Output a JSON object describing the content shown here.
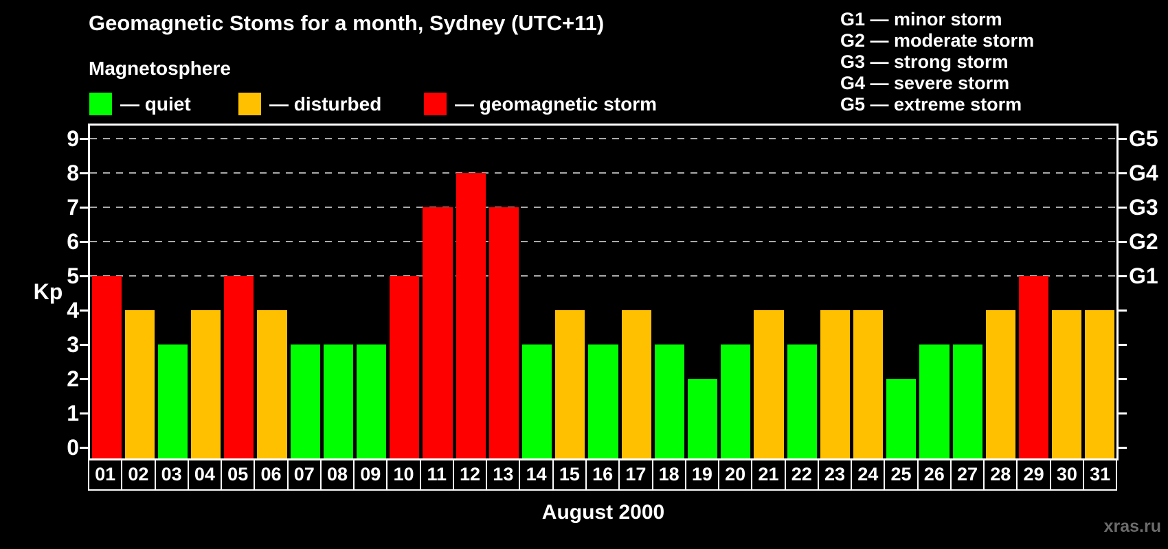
{
  "watermark": "xras.ru",
  "colors": {
    "quiet": "#00ff00",
    "disturbed": "#ffc000",
    "storm": "#ff0000",
    "axis": "#ffffff",
    "grid": "#aaaaaa",
    "background": "#000000",
    "text": "#ffffff",
    "watermark": "#6b6b6b"
  },
  "magnetosphere_legend": {
    "title": "Magnetosphere",
    "items": [
      {
        "level": "quiet",
        "label": "— quiet"
      },
      {
        "level": "disturbed",
        "label": "— disturbed"
      },
      {
        "level": "storm",
        "label": "— geomagnetic storm"
      }
    ]
  },
  "storm_scale_legend": {
    "items": [
      "G1 — minor storm",
      "G2 — moderate storm",
      "G3 — strong storm",
      "G4 — severe storm",
      "G5 — extreme storm"
    ]
  },
  "chart_data": {
    "type": "bar",
    "title": "Geomagnetic Stoms for a month, Sydney (UTC+11)",
    "xlabel": "August 2000",
    "ylabel": "Kp",
    "ylim": [
      0,
      9
    ],
    "grid": "horizontal dashed lines at Kp 5 to 9, legend top, right axis G-scale",
    "gridlines_at": [
      5,
      6,
      7,
      8,
      9
    ],
    "categories": [
      "01",
      "02",
      "03",
      "04",
      "05",
      "06",
      "07",
      "08",
      "09",
      "10",
      "11",
      "12",
      "13",
      "14",
      "15",
      "16",
      "17",
      "18",
      "19",
      "20",
      "21",
      "22",
      "23",
      "24",
      "25",
      "26",
      "27",
      "28",
      "29",
      "30",
      "31"
    ],
    "values": [
      5,
      4,
      3,
      4,
      5,
      4,
      3,
      3,
      3,
      5,
      7,
      8,
      7,
      3,
      4,
      3,
      4,
      3,
      2,
      3,
      4,
      3,
      4,
      4,
      2,
      3,
      3,
      4,
      5,
      4,
      4
    ],
    "levels": [
      "storm",
      "disturbed",
      "quiet",
      "disturbed",
      "storm",
      "disturbed",
      "quiet",
      "quiet",
      "quiet",
      "storm",
      "storm",
      "storm",
      "storm",
      "quiet",
      "disturbed",
      "quiet",
      "disturbed",
      "quiet",
      "quiet",
      "quiet",
      "disturbed",
      "quiet",
      "disturbed",
      "disturbed",
      "quiet",
      "quiet",
      "quiet",
      "disturbed",
      "storm",
      "disturbed",
      "disturbed"
    ],
    "right_axis": [
      {
        "label": "G1",
        "kp": 5
      },
      {
        "label": "G2",
        "kp": 6
      },
      {
        "label": "G3",
        "kp": 7
      },
      {
        "label": "G4",
        "kp": 8
      },
      {
        "label": "G5",
        "kp": 9
      }
    ]
  }
}
